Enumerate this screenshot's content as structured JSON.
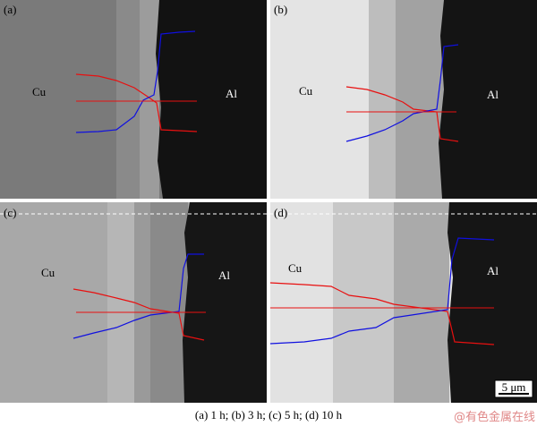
{
  "panels": [
    {
      "label": "(a)",
      "left": "Cu",
      "right": "Al"
    },
    {
      "label": "(b)",
      "left": "Cu",
      "right": "Al"
    },
    {
      "label": "(c)",
      "left": "Cu",
      "right": "Al"
    },
    {
      "label": "(d)",
      "left": "Cu",
      "right": "Al"
    }
  ],
  "scale_bar": "5 μm",
  "caption": "(a) 1 h; (b) 3 h; (c) 5 h; (d) 10 h",
  "watermark": "@有色金属在线"
}
